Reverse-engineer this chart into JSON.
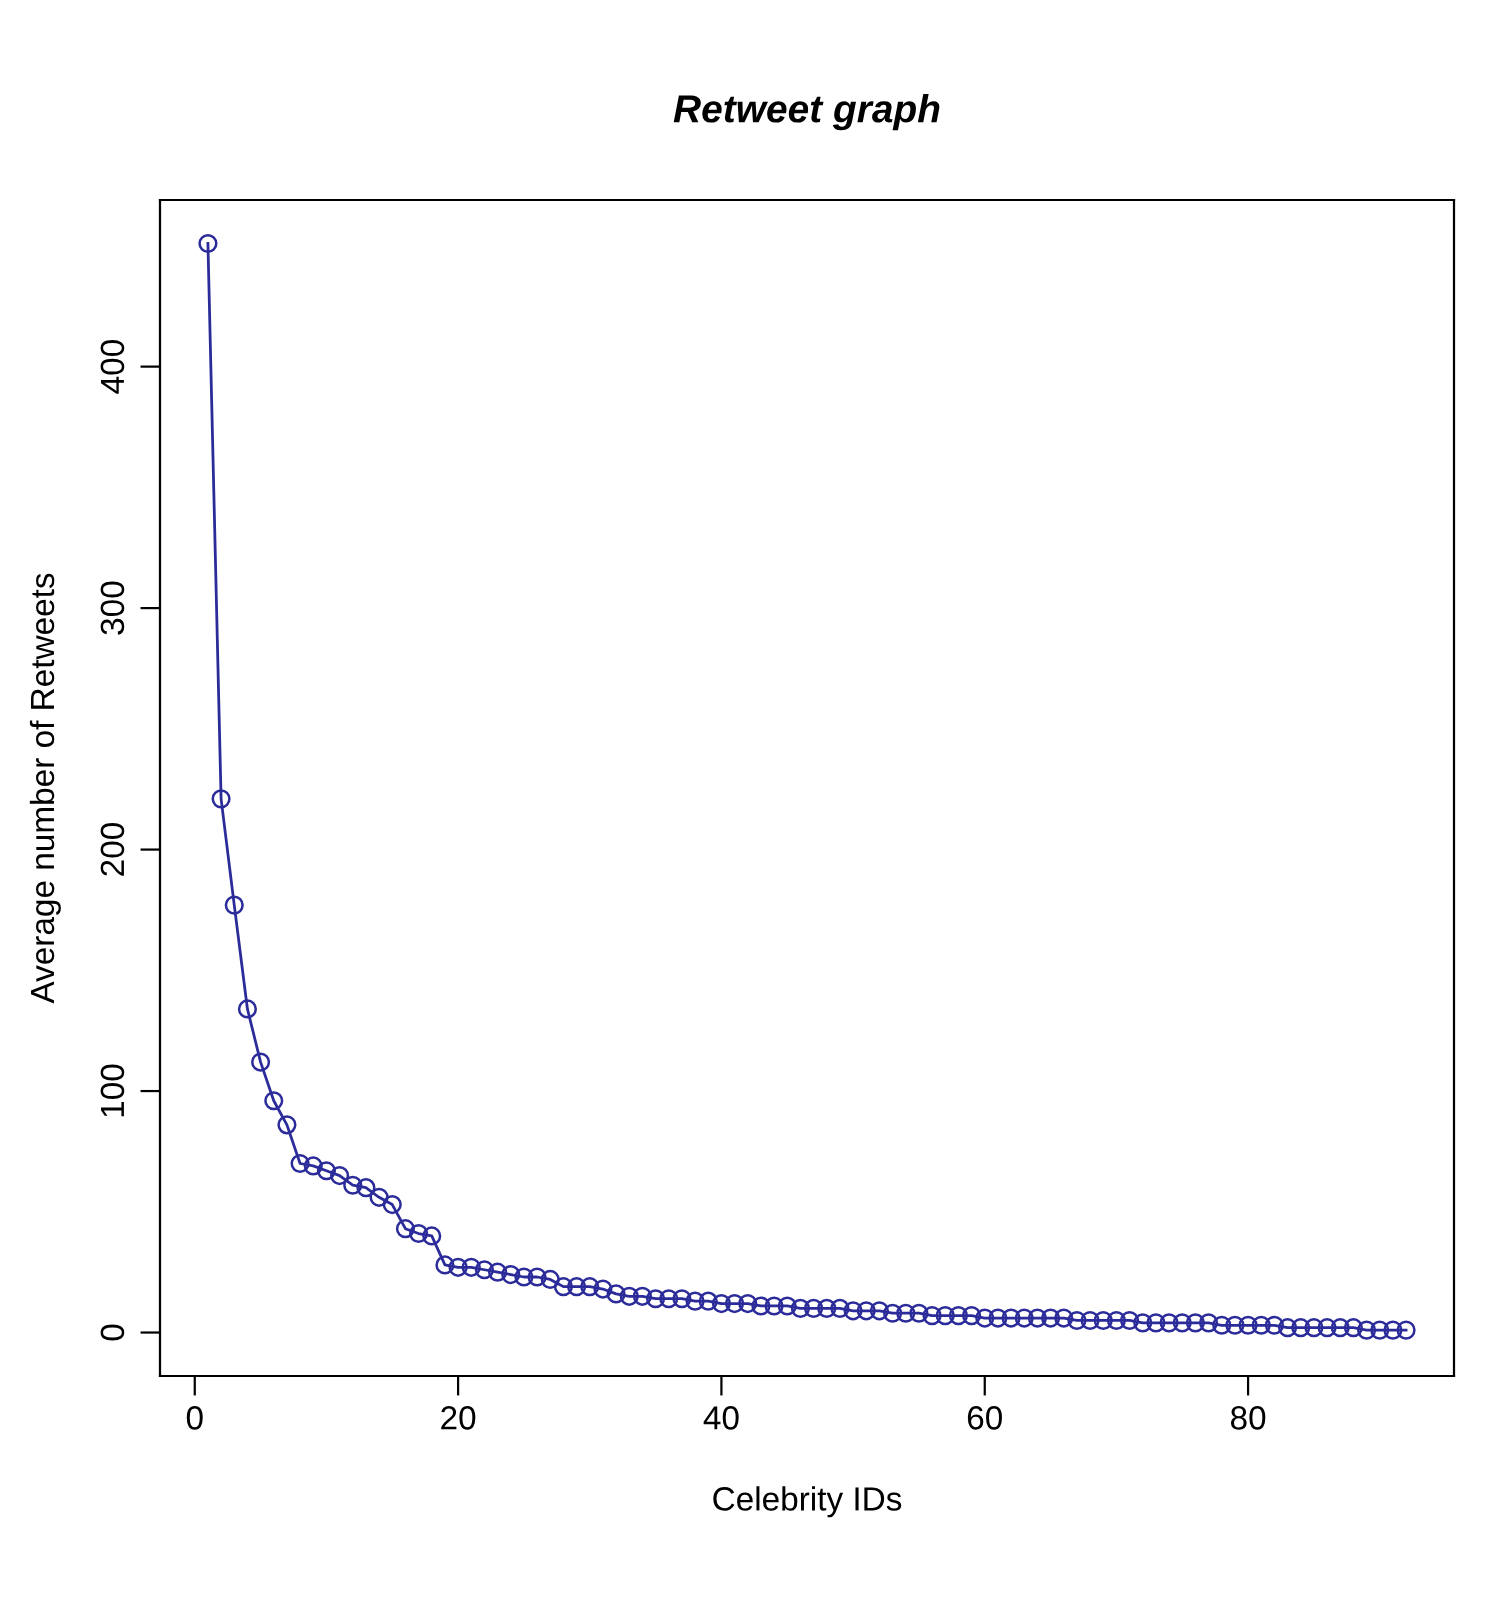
{
  "chart_data": {
    "type": "line",
    "title": "Retweet graph",
    "xlabel": "Celebrity IDs",
    "ylabel": "Average number of Retweets",
    "x": [
      1,
      2,
      3,
      4,
      5,
      6,
      7,
      8,
      9,
      10,
      11,
      12,
      13,
      14,
      15,
      16,
      17,
      18,
      19,
      20,
      21,
      22,
      23,
      24,
      25,
      26,
      27,
      28,
      29,
      30,
      31,
      32,
      33,
      34,
      35,
      36,
      37,
      38,
      39,
      40,
      41,
      42,
      43,
      44,
      45,
      46,
      47,
      48,
      49,
      50,
      51,
      52,
      53,
      54,
      55,
      56,
      57,
      58,
      59,
      60,
      61,
      62,
      63,
      64,
      65,
      66,
      67,
      68,
      69,
      70,
      71,
      72,
      73,
      74,
      75,
      76,
      77,
      78,
      79,
      80,
      81,
      82,
      83,
      84,
      85,
      86,
      87,
      88,
      89,
      90,
      91,
      92
    ],
    "series": [
      {
        "color": "#2b2b9a",
        "values": [
          451,
          221,
          177,
          134,
          112,
          96,
          86,
          70,
          69,
          67,
          65,
          61,
          60,
          56,
          53,
          43,
          41,
          40,
          28,
          27,
          27,
          26,
          25,
          24,
          23,
          23,
          22,
          19,
          19,
          19,
          18,
          16,
          15,
          15,
          14,
          14,
          14,
          13,
          13,
          12,
          12,
          12,
          11,
          11,
          11,
          10,
          10,
          10,
          10,
          9,
          9,
          9,
          8,
          8,
          8,
          7,
          7,
          7,
          7,
          6,
          6,
          6,
          6,
          6,
          6,
          6,
          5,
          5,
          5,
          5,
          5,
          4,
          4,
          4,
          4,
          4,
          4,
          3,
          3,
          3,
          3,
          3,
          2,
          2,
          2,
          2,
          2,
          2,
          1,
          1,
          1,
          1
        ]
      }
    ],
    "xlim": [
      -2.64,
      95.64
    ],
    "ylim": [
      -18,
      469
    ],
    "xticks": [
      0,
      20,
      40,
      60,
      80
    ],
    "yticks": [
      0,
      100,
      200,
      300,
      400
    ],
    "marker": "circle",
    "line_style": "solid",
    "grid": false,
    "legend": false
  }
}
